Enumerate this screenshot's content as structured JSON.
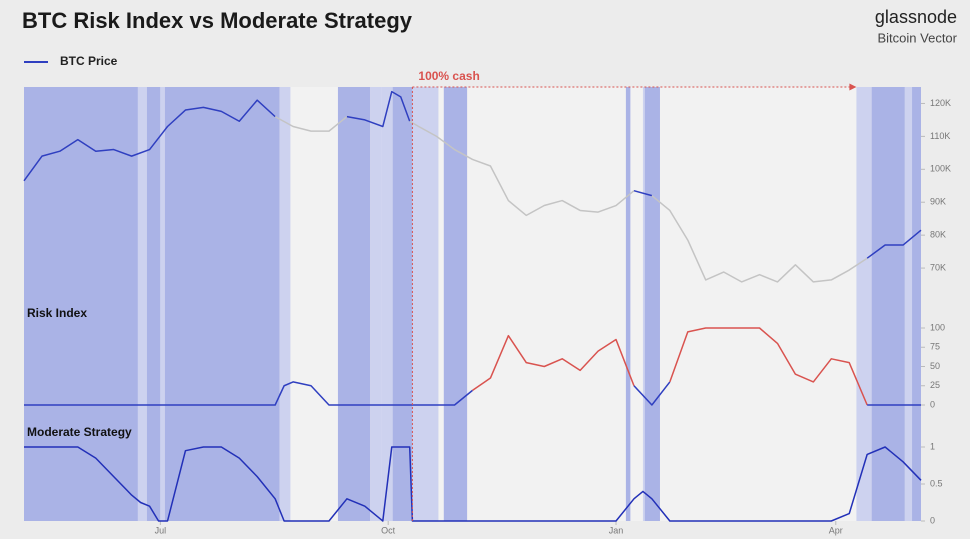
{
  "title": "BTC Risk Index vs Moderate Strategy",
  "brand": "glassnode",
  "subtitle": "Bitcoin Vector",
  "annotation": {
    "text": "100% cash",
    "x_from": 43.3,
    "x_to": 92.8,
    "color": "#d9534f"
  },
  "position_bands": [
    {
      "from": 0,
      "to": 12.7,
      "color": "#aab3e6"
    },
    {
      "from": 12.7,
      "to": 13.7,
      "color": "#cdd2ef"
    },
    {
      "from": 13.7,
      "to": 15.2,
      "color": "#aab3e6"
    },
    {
      "from": 15.2,
      "to": 15.7,
      "color": "#cdd2ef"
    },
    {
      "from": 15.7,
      "to": 28.5,
      "color": "#aab3e6"
    },
    {
      "from": 28.5,
      "to": 29.7,
      "color": "#cdd2ef"
    },
    {
      "from": 35.0,
      "to": 38.6,
      "color": "#aab3e6"
    },
    {
      "from": 38.6,
      "to": 39.9,
      "color": "#cdd2ef"
    },
    {
      "from": 39.9,
      "to": 41.1,
      "color": "#cdd2ef"
    },
    {
      "from": 41.1,
      "to": 43.3,
      "color": "#aab3e6"
    },
    {
      "from": 43.3,
      "to": 46.2,
      "color": "#cdd2ef"
    },
    {
      "from": 46.8,
      "to": 49.4,
      "color": "#aab3e6"
    },
    {
      "from": 67.1,
      "to": 67.6,
      "color": "#aab3e6"
    },
    {
      "from": 69.0,
      "to": 69.2,
      "color": "#cdd2ef"
    },
    {
      "from": 69.2,
      "to": 70.9,
      "color": "#aab3e6"
    },
    {
      "from": 92.8,
      "to": 94.5,
      "color": "#cdd2ef"
    },
    {
      "from": 94.5,
      "to": 98.2,
      "color": "#aab3e6"
    },
    {
      "from": 98.2,
      "to": 99.0,
      "color": "#cdd2ef"
    },
    {
      "from": 99.0,
      "to": 100,
      "color": "#aab3e6"
    }
  ],
  "chart_data": [
    {
      "type": "line",
      "xlim": [
        0,
        100
      ],
      "ylim": [
        60000,
        125000
      ],
      "yticks": [
        {
          "value": 70000,
          "label": "70K"
        },
        {
          "value": 80000,
          "label": "80K"
        },
        {
          "value": 90000,
          "label": "90K"
        },
        {
          "value": 100000,
          "label": "100K"
        },
        {
          "value": 110000,
          "label": "110K"
        },
        {
          "value": 120000,
          "label": "120K"
        }
      ],
      "x": [
        0,
        2,
        4,
        6,
        8,
        10,
        12,
        14,
        16,
        18,
        20,
        22,
        24,
        26,
        28,
        30,
        32,
        34,
        36,
        38,
        40,
        41,
        42,
        43,
        44,
        46,
        48,
        50,
        52,
        54,
        56,
        58,
        60,
        62,
        64,
        66,
        68,
        70,
        72,
        74,
        76,
        78,
        80,
        82,
        84,
        86,
        88,
        90,
        92,
        94,
        96,
        98,
        100
      ],
      "series": [
        {
          "name": "BTC Price",
          "color": "#2f3fc0",
          "values": [
            96500,
            104000,
            105500,
            109000,
            105500,
            106000,
            104000,
            106000,
            113000,
            118000,
            118800,
            117600,
            114600,
            121000,
            116000,
            113000,
            111600,
            111600,
            116000,
            115000,
            113000,
            123600,
            122000,
            114600,
            113000,
            110000,
            106000,
            103000,
            101000,
            90500,
            86000,
            89000,
            90500,
            87500,
            87000,
            89000,
            93500,
            92000,
            87500,
            78500,
            66400,
            68800,
            65800,
            68000,
            65800,
            71000,
            65800,
            66400,
            69400,
            73000,
            77000,
            77000,
            81500
          ],
          "colors": [
            "#2f3fc0",
            "#2f3fc0",
            "#2f3fc0",
            "#2f3fc0",
            "#2f3fc0",
            "#2f3fc0",
            "#2f3fc0",
            "#2f3fc0",
            "#2f3fc0",
            "#2f3fc0",
            "#2f3fc0",
            "#2f3fc0",
            "#2f3fc0",
            "#2f3fc0",
            "#c4c4c4",
            "#c4c4c4",
            "#c4c4c4",
            "#c4c4c4",
            "#2f3fc0",
            "#2f3fc0",
            "#2f3fc0",
            "#2f3fc0",
            "#2f3fc0",
            "#c4c4c4",
            "#c4c4c4",
            "#c4c4c4",
            "#c4c4c4",
            "#c4c4c4",
            "#c4c4c4",
            "#c4c4c4",
            "#c4c4c4",
            "#c4c4c4",
            "#c4c4c4",
            "#c4c4c4",
            "#c4c4c4",
            "#c4c4c4",
            "#2f3fc0",
            "#c4c4c4",
            "#c4c4c4",
            "#c4c4c4",
            "#c4c4c4",
            "#c4c4c4",
            "#c4c4c4",
            "#c4c4c4",
            "#c4c4c4",
            "#c4c4c4",
            "#c4c4c4",
            "#c4c4c4",
            "#c4c4c4",
            "#2f3fc0",
            "#2f3fc0",
            "#2f3fc0",
            "#2f3fc0"
          ]
        }
      ]
    },
    {
      "type": "line",
      "title": "Risk Index",
      "xlim": [
        0,
        100
      ],
      "ylim": [
        0,
        100
      ],
      "yticks": [
        0,
        25,
        50,
        75,
        100
      ],
      "x": [
        0,
        28,
        29,
        30,
        32,
        34,
        35,
        48,
        50,
        52,
        54,
        56,
        58,
        60,
        62,
        64,
        66,
        68,
        70,
        72,
        74,
        76,
        78,
        80,
        82,
        84,
        86,
        88,
        90,
        92,
        94,
        96,
        98,
        100
      ],
      "series": [
        {
          "color": "#2f3fc0",
          "values": [
            0,
            0,
            25,
            30,
            25,
            0,
            0,
            0,
            19,
            35,
            90,
            55,
            50,
            60,
            45,
            70,
            85,
            25,
            0,
            30,
            95,
            100,
            100,
            100,
            100,
            80,
            40,
            30,
            60,
            55,
            0,
            0,
            0,
            0
          ],
          "colors": [
            "#2f3fc0",
            "#2f3fc0",
            "#2f3fc0",
            "#2f3fc0",
            "#2f3fc0",
            "#2f3fc0",
            "#2f3fc0",
            "#2f3fc0",
            "#d9534f",
            "#d9534f",
            "#d9534f",
            "#d9534f",
            "#d9534f",
            "#d9534f",
            "#d9534f",
            "#d9534f",
            "#d9534f",
            "#2f3fc0",
            "#2f3fc0",
            "#d9534f",
            "#d9534f",
            "#d9534f",
            "#d9534f",
            "#d9534f",
            "#d9534f",
            "#d9534f",
            "#d9534f",
            "#d9534f",
            "#d9534f",
            "#d9534f",
            "#2f3fc0",
            "#2f3fc0",
            "#2f3fc0",
            "#2f3fc0"
          ]
        }
      ]
    },
    {
      "type": "line",
      "title": "Moderate Strategy",
      "xlim": [
        0,
        100
      ],
      "ylim": [
        0,
        1
      ],
      "yticks": [
        0,
        0.5,
        1
      ],
      "xticks": [
        {
          "value": 15.2,
          "label": "Jul"
        },
        {
          "value": 40.6,
          "label": "Oct"
        },
        {
          "value": 66,
          "label": "Jan"
        },
        {
          "value": 90.5,
          "label": "Apr"
        }
      ],
      "x": [
        0,
        6,
        8,
        10,
        12,
        13,
        14,
        15,
        16,
        18,
        20,
        22,
        24,
        26,
        28,
        29,
        34,
        36,
        38,
        40,
        41,
        42,
        43,
        43.3,
        66,
        68,
        69,
        70,
        72,
        90,
        92,
        94,
        96,
        98,
        100
      ],
      "series": [
        {
          "color": "#2230b8",
          "values": [
            1,
            1,
            0.85,
            0.6,
            0.35,
            0.25,
            0.2,
            0,
            0,
            0.95,
            1,
            1,
            0.85,
            0.6,
            0.3,
            0,
            0,
            0.3,
            0.2,
            0,
            1,
            1,
            1,
            0,
            0,
            0.3,
            0.4,
            0.3,
            0,
            0,
            0.1,
            0.9,
            1,
            0.8,
            0.55
          ]
        }
      ]
    }
  ]
}
